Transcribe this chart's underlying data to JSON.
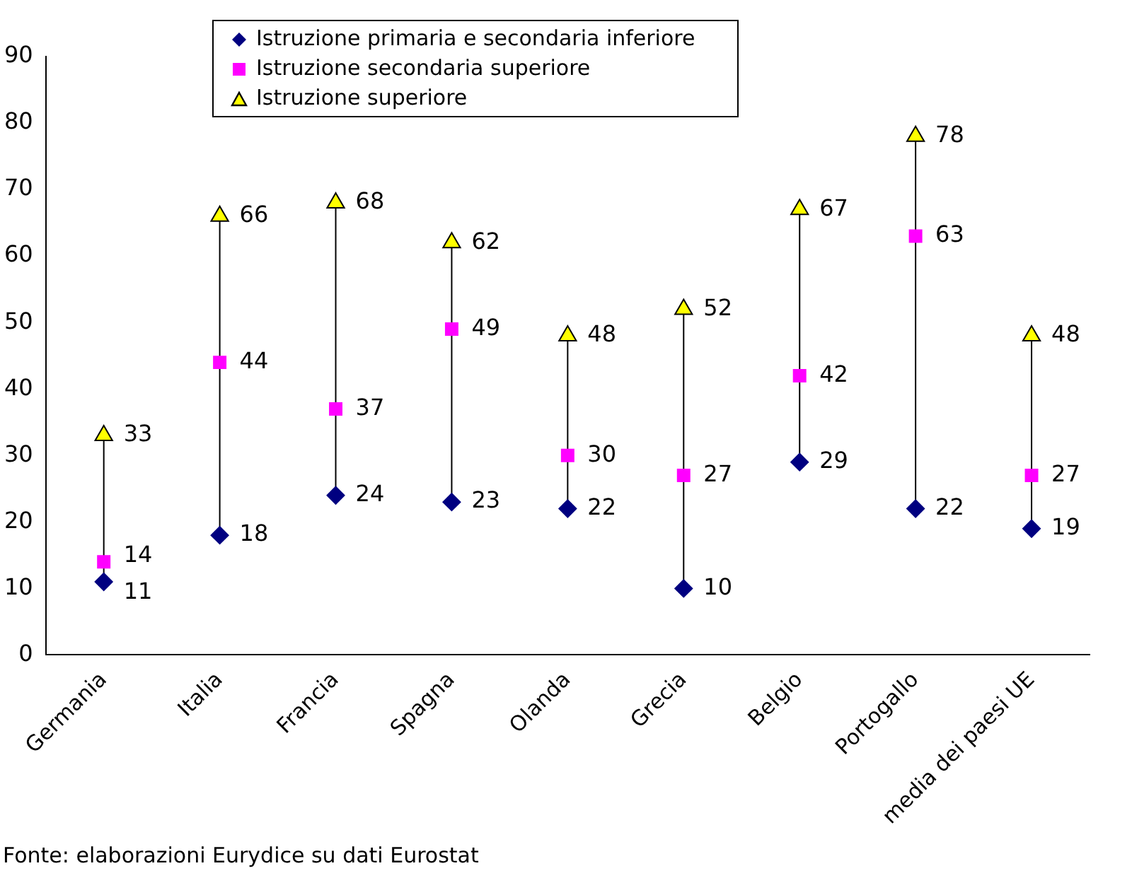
{
  "chart_data": {
    "type": "scatter",
    "categories": [
      "Germania",
      "Italia",
      "Francia",
      "Spagna",
      "Olanda",
      "Grecia",
      "Belgio",
      "Portogallo",
      "media dei paesi UE"
    ],
    "series": [
      {
        "name": "Istruzione primaria e secondaria inferiore",
        "color": "#000080",
        "marker": "diamond",
        "values": [
          11,
          18,
          24,
          23,
          22,
          10,
          29,
          22,
          19
        ]
      },
      {
        "name": "Istruzione secondaria superiore",
        "color": "#ff00ff",
        "marker": "square",
        "values": [
          14,
          44,
          37,
          49,
          30,
          27,
          42,
          63,
          27
        ]
      },
      {
        "name": "Istruzione superiore",
        "color": "#ffff00",
        "marker": "triangle",
        "values": [
          33,
          66,
          68,
          62,
          48,
          52,
          67,
          78,
          48
        ]
      }
    ],
    "ylim": [
      0,
      90
    ],
    "yticks": [
      0,
      10,
      20,
      30,
      40,
      50,
      60,
      70,
      80,
      90
    ],
    "grid": false,
    "legend": "top",
    "data_labels": true,
    "annotations": [
      "Fonte: elaborazioni Eurydice su dati Eurostat"
    ]
  }
}
